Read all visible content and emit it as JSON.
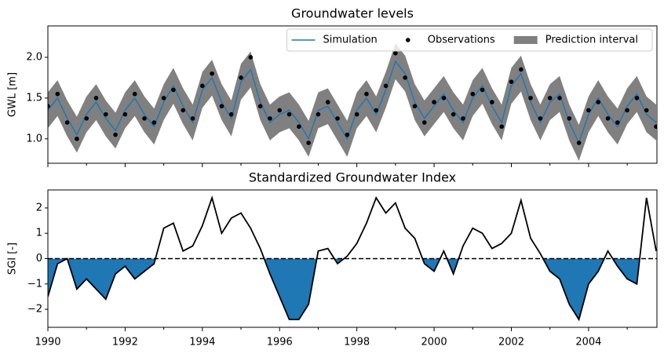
{
  "chart_data": [
    {
      "type": "line",
      "title": "Groundwater levels",
      "ylabel": "GWL [m]",
      "x": [
        1990,
        1990.25,
        1990.5,
        1990.75,
        1991,
        1991.25,
        1991.5,
        1991.75,
        1992,
        1992.25,
        1992.5,
        1992.75,
        1993,
        1993.25,
        1993.5,
        1993.75,
        1994,
        1994.25,
        1994.5,
        1994.75,
        1995,
        1995.25,
        1995.5,
        1995.75,
        1996,
        1996.25,
        1996.5,
        1996.75,
        1997,
        1997.25,
        1997.5,
        1997.75,
        1998,
        1998.25,
        1998.5,
        1998.75,
        1999,
        1999.25,
        1999.5,
        1999.75,
        2000,
        2000.25,
        2000.5,
        2000.75,
        2001,
        2001.25,
        2001.5,
        2001.75,
        2002,
        2002.25,
        2002.5,
        2002.75,
        2003,
        2003.25,
        2003.5,
        2003.75,
        2004,
        2004.25,
        2004.5,
        2004.75,
        2005,
        2005.25,
        2005.5,
        2005.75
      ],
      "series": [
        {
          "name": "Simulation",
          "color": "#1f77b4",
          "values": [
            1.35,
            1.5,
            1.25,
            1.05,
            1.3,
            1.45,
            1.25,
            1.1,
            1.35,
            1.5,
            1.3,
            1.15,
            1.45,
            1.65,
            1.4,
            1.2,
            1.6,
            1.75,
            1.45,
            1.25,
            1.7,
            1.85,
            1.45,
            1.2,
            1.3,
            1.35,
            1.2,
            1.0,
            1.35,
            1.4,
            1.2,
            1.0,
            1.35,
            1.5,
            1.3,
            1.6,
            1.95,
            1.8,
            1.45,
            1.25,
            1.4,
            1.55,
            1.35,
            1.2,
            1.5,
            1.65,
            1.4,
            1.2,
            1.65,
            1.8,
            1.45,
            1.2,
            1.45,
            1.55,
            1.2,
            0.95,
            1.3,
            1.5,
            1.3,
            1.15,
            1.4,
            1.55,
            1.3,
            1.2
          ]
        },
        {
          "name": "Observations",
          "color": "#000000",
          "marker": "o",
          "values": [
            1.4,
            1.55,
            1.2,
            1.0,
            1.25,
            1.5,
            1.3,
            1.05,
            1.3,
            1.55,
            1.25,
            1.2,
            1.5,
            1.6,
            1.35,
            1.25,
            1.65,
            1.8,
            1.4,
            1.3,
            1.75,
            2.0,
            1.4,
            1.25,
            1.35,
            1.3,
            1.15,
            0.95,
            1.3,
            1.45,
            1.25,
            1.05,
            1.3,
            1.55,
            1.35,
            1.65,
            2.05,
            1.75,
            1.4,
            1.2,
            1.45,
            1.5,
            1.3,
            1.25,
            1.55,
            1.6,
            1.45,
            1.15,
            1.7,
            1.85,
            1.5,
            1.25,
            1.5,
            1.5,
            1.25,
            0.95,
            1.35,
            1.45,
            1.25,
            1.2,
            1.35,
            1.5,
            1.35,
            1.15
          ]
        }
      ],
      "interval": {
        "name": "Prediction interval",
        "color": "#808080",
        "lower": [
          1.13,
          1.28,
          1.03,
          0.83,
          1.08,
          1.23,
          1.03,
          0.88,
          1.13,
          1.28,
          1.08,
          0.93,
          1.23,
          1.43,
          1.18,
          0.98,
          1.38,
          1.53,
          1.23,
          1.03,
          1.48,
          1.63,
          1.23,
          0.98,
          1.08,
          1.13,
          0.98,
          0.78,
          1.13,
          1.18,
          0.98,
          0.78,
          1.13,
          1.28,
          1.08,
          1.38,
          1.73,
          1.58,
          1.23,
          1.03,
          1.18,
          1.33,
          1.13,
          0.98,
          1.28,
          1.43,
          1.18,
          0.98,
          1.43,
          1.58,
          1.23,
          0.98,
          1.23,
          1.33,
          0.98,
          0.73,
          1.08,
          1.28,
          1.08,
          0.93,
          1.18,
          1.33,
          1.08,
          0.98
        ],
        "upper": [
          1.57,
          1.72,
          1.47,
          1.27,
          1.52,
          1.67,
          1.47,
          1.32,
          1.57,
          1.72,
          1.52,
          1.37,
          1.67,
          1.87,
          1.62,
          1.42,
          1.82,
          1.97,
          1.67,
          1.47,
          1.92,
          2.07,
          1.67,
          1.42,
          1.52,
          1.57,
          1.42,
          1.22,
          1.57,
          1.62,
          1.42,
          1.22,
          1.57,
          1.72,
          1.52,
          1.82,
          2.17,
          2.02,
          1.67,
          1.47,
          1.62,
          1.77,
          1.57,
          1.42,
          1.72,
          1.87,
          1.62,
          1.42,
          1.87,
          2.02,
          1.67,
          1.42,
          1.67,
          1.77,
          1.42,
          1.17,
          1.52,
          1.72,
          1.52,
          1.37,
          1.62,
          1.77,
          1.52,
          1.42
        ]
      },
      "xlim": [
        1990,
        2005.77
      ],
      "xticks": [
        1990,
        1992,
        1994,
        1996,
        1998,
        2000,
        2002,
        2004
      ],
      "xminorticks": [
        1991,
        1993,
        1995,
        1997,
        1999,
        2001,
        2003,
        2005
      ],
      "ylim": [
        0.7,
        2.385
      ],
      "yticks": [
        {
          "value": 1.0,
          "label": "1.0"
        },
        {
          "value": 1.5,
          "label": "1.5"
        },
        {
          "value": 2.0,
          "label": "2.0"
        }
      ],
      "legend": "upper right"
    },
    {
      "type": "line",
      "title": "Standardized Groundwater Index",
      "ylabel": "SGI [-]",
      "x": [
        1990,
        1990.25,
        1990.5,
        1990.75,
        1991,
        1991.25,
        1991.5,
        1991.75,
        1992,
        1992.25,
        1992.5,
        1992.75,
        1993,
        1993.25,
        1993.5,
        1993.75,
        1994,
        1994.25,
        1994.5,
        1994.75,
        1995,
        1995.25,
        1995.5,
        1995.75,
        1996,
        1996.25,
        1996.5,
        1996.75,
        1997,
        1997.25,
        1997.5,
        1997.75,
        1998,
        1998.25,
        1998.5,
        1998.75,
        1999,
        1999.25,
        1999.5,
        1999.75,
        2000,
        2000.25,
        2000.5,
        2000.75,
        2001,
        2001.25,
        2001.5,
        2001.75,
        2002,
        2002.25,
        2002.5,
        2002.75,
        2003,
        2003.25,
        2003.5,
        2003.75,
        2004,
        2004.25,
        2004.5,
        2004.75,
        2005,
        2005.25,
        2005.5,
        2005.75
      ],
      "series": [
        {
          "color": "#000000",
          "fill": "#1f77b4",
          "values": [
            -1.5,
            -0.2,
            0.0,
            -1.2,
            -0.8,
            -1.2,
            -1.6,
            -0.6,
            -0.3,
            -0.8,
            -0.5,
            -0.2,
            1.2,
            1.4,
            0.3,
            0.5,
            1.3,
            2.4,
            1.0,
            1.6,
            1.8,
            1.2,
            0.4,
            -0.6,
            -1.5,
            -2.4,
            -2.4,
            -1.8,
            0.3,
            0.4,
            -0.2,
            0.1,
            0.6,
            1.4,
            2.4,
            1.8,
            2.2,
            1.2,
            0.8,
            -0.2,
            -0.5,
            0.3,
            -0.6,
            0.5,
            1.2,
            1.0,
            0.4,
            0.6,
            1.0,
            2.3,
            0.8,
            0.2,
            -0.5,
            -0.8,
            -1.8,
            -2.4,
            -1.0,
            -0.5,
            0.3,
            -0.3,
            -0.8,
            -1.0,
            2.4,
            0.3
          ]
        }
      ],
      "hline": 0,
      "xlim": [
        1990,
        2005.77
      ],
      "xticks": [
        1990,
        1992,
        1994,
        1996,
        1998,
        2000,
        2002,
        2004
      ],
      "xminorticks": [
        1991,
        1993,
        1995,
        1997,
        1999,
        2001,
        2003,
        2005
      ],
      "ylim": [
        -2.71,
        2.71
      ],
      "yticks": [
        {
          "value": -2,
          "label": "−2"
        },
        {
          "value": -1,
          "label": "−1"
        },
        0,
        1,
        2
      ]
    }
  ]
}
